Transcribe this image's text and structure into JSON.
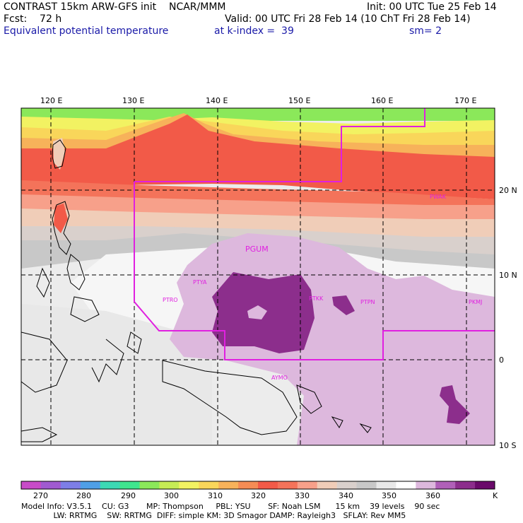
{
  "header": {
    "line1_left": "CONTRAST 15km ARW-GFS init    NCAR/MMM",
    "line1_right": "Init: 00 UTC Tue 25 Feb 14",
    "line2_left": "Fcst:    72 h",
    "line2_right": "Valid: 00 UTC Fri 28 Feb 14 (10 ChT Fri 28 Feb 14)",
    "line3_field": "Equivalent potential temperature",
    "line3_level": "at k-index =  39",
    "line3_sm": "sm= 2"
  },
  "map": {
    "lon_labels": [
      "120 E",
      "130 E",
      "140 E",
      "150 E",
      "160 E",
      "170 E"
    ],
    "lat_labels": [
      "20 N",
      "10 N",
      "0",
      "10 S"
    ],
    "stations": [
      "PGUM",
      "PTYA",
      "PTRO",
      "PTKK",
      "PTPN",
      "PKMJ",
      "PWAK",
      "AYMO"
    ]
  },
  "colorbar": {
    "unit": "K",
    "ticks": [
      "270",
      "280",
      "290",
      "300",
      "310",
      "320",
      "330",
      "340",
      "350",
      "360"
    ],
    "colors": [
      "#c84bc8",
      "#a05ad0",
      "#7d7ee6",
      "#4f9fe6",
      "#3cd9b4",
      "#3fe58e",
      "#8be85a",
      "#c6ec55",
      "#f2f262",
      "#f9d65a",
      "#f7b25a",
      "#f58c55",
      "#f25a48",
      "#f4735a",
      "#f7a08a",
      "#f0cdb8",
      "#d9d0cc",
      "#c8c8c8",
      "#e8e8e8",
      "#ffffff",
      "#ddb8dd",
      "#b060b8",
      "#8c2e8c",
      "#6a0a6a"
    ]
  },
  "footer": {
    "line1": "Model Info: V3.5.1    CU: G3       MP: Thompson     PBL: YSU       SF: Noah LSM      15 km    39 levels    90 sec",
    "line2": "             LW: RRTMG    SW: RRTMG  DIFF: simple KM: 3D Smagor DAMP: Rayleigh3   SFLAY: Rev MM5"
  }
}
